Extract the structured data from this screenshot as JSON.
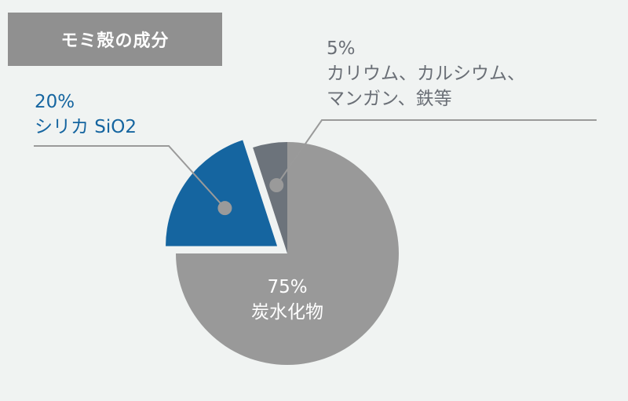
{
  "title": "モミ殻の成分",
  "colors": {
    "background": "#f0f3f2",
    "title_box": "#909090",
    "carbohydrate": "#999999",
    "silica": "#1565a0",
    "minerals": "#6c737b",
    "leader": "#9a9a9a"
  },
  "chart_data": {
    "type": "pie",
    "title": "モミ殻の成分",
    "slices": [
      {
        "label_lines": [
          "75%",
          "炭水化物"
        ],
        "value": 75,
        "color": "#999999",
        "exploded": false
      },
      {
        "label_lines": [
          "20%",
          "シリカ SiO2"
        ],
        "value": 20,
        "color": "#1565a0",
        "exploded": true
      },
      {
        "label_lines": [
          "5%",
          "カリウム、カルシウム、",
          "マンガン、鉄等"
        ],
        "value": 5,
        "color": "#6c737b",
        "exploded": false
      }
    ]
  }
}
